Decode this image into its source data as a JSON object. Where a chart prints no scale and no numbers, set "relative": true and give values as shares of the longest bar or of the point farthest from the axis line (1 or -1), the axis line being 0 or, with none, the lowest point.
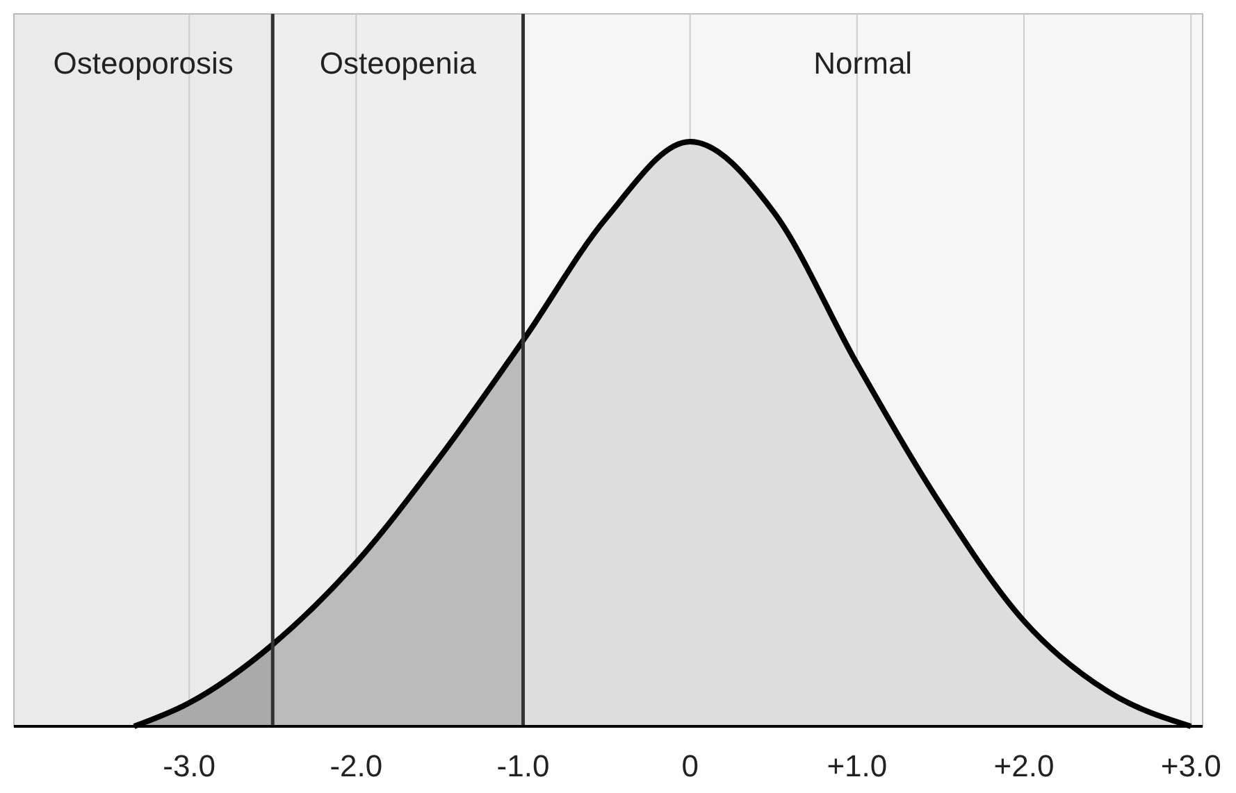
{
  "chart_data": {
    "type": "area",
    "relative": true,
    "x": [
      -3.33,
      -3.0,
      -2.5,
      -2.0,
      -1.5,
      -1.0,
      -0.5,
      0,
      0.5,
      1.0,
      1.5,
      2.0,
      2.5,
      3.0
    ],
    "series": [
      {
        "color": "#000000",
        "values": [
          0,
          0.04,
          0.14,
          0.28,
          0.46,
          0.66,
          0.87,
          1,
          0.88,
          0.62,
          0.38,
          0.18,
          0.06,
          0
        ]
      }
    ],
    "xlim": [
      -4.05,
      3.07
    ],
    "xticks": [
      {
        "value": -3,
        "label": "-3.0"
      },
      {
        "value": -2,
        "label": "-2.0"
      },
      {
        "value": -1,
        "label": "-1.0"
      },
      0,
      {
        "value": 1,
        "label": "+1.0"
      },
      {
        "value": 2,
        "label": "+2.0"
      },
      {
        "value": 3,
        "label": "+3.0"
      }
    ],
    "grid": "x",
    "bands": [
      {
        "axis": "x",
        "from": -4.05,
        "to": -2.5,
        "label": "Osteoporosis",
        "color": "#aaaaaa"
      },
      {
        "axis": "x",
        "from": -2.5,
        "to": -1.0,
        "label": "Osteopenia",
        "color": "#bbbbbb"
      },
      {
        "axis": "x",
        "from": -1.0,
        "to": 3.07,
        "label": "Normal",
        "color": "#dddddd"
      }
    ],
    "ref_lines": [
      {
        "axis": "x",
        "value": -2.5,
        "color": "#333333"
      },
      {
        "axis": "x",
        "value": -1.0,
        "color": "#333333"
      }
    ]
  }
}
